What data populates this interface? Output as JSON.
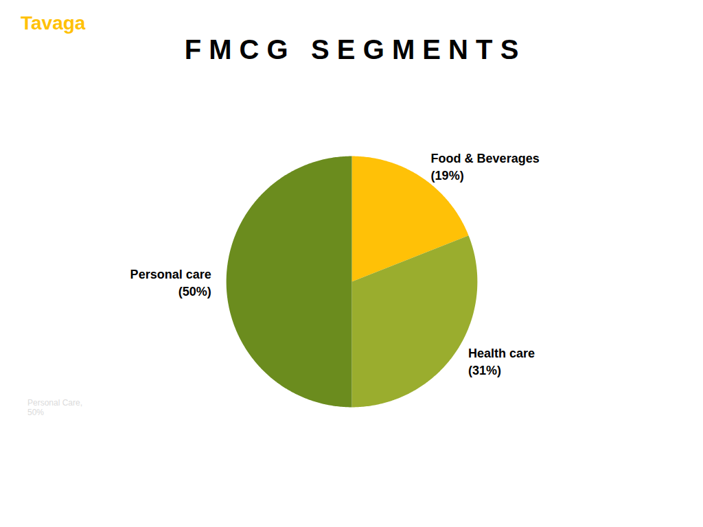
{
  "chart_data": {
    "type": "pie",
    "title": "F M C G   S E G M E N T S",
    "categories": [
      "Food & Beverages",
      "Health care",
      "Personal care"
    ],
    "values": [
      19,
      31,
      50
    ],
    "value_labels": [
      "(19%)",
      "(31%)",
      "(50%)"
    ],
    "colors": [
      "#FFC107",
      "#9aad2e",
      "#6b8c1e"
    ],
    "data_labels": true,
    "annotations": [
      {
        "text": "Tavaga",
        "color": "#FFC107"
      },
      {
        "text": "Personal Care,\n50%",
        "color": "#cccccc"
      }
    ]
  }
}
